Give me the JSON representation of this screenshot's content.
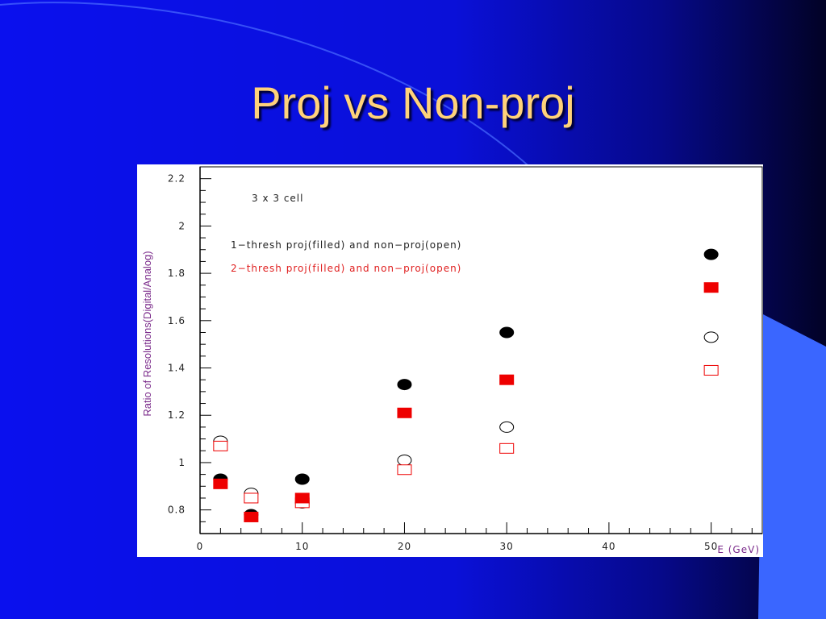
{
  "slide": {
    "title": "Proj vs Non-proj"
  },
  "chart_data": {
    "type": "scatter",
    "xlabel": "E (GeV)",
    "ylabel": "Ratio of Resolutions(Digital/Analog)",
    "xlim": [
      0,
      55
    ],
    "ylim": [
      0.7,
      2.25
    ],
    "x_ticks": [
      "0",
      "10",
      "20",
      "30",
      "40",
      "50"
    ],
    "y_ticks": [
      "0.8",
      "1",
      "1.2",
      "1.4",
      "1.6",
      "1.8",
      "2",
      "2.2"
    ],
    "annotations": [
      "3 x 3 cell",
      "1−thresh proj(filled) and non−proj(open)",
      "2−thresh proj(filled) and non−proj(open)"
    ],
    "series": [
      {
        "marker": "circle",
        "filled": true,
        "color": "#000000",
        "x": [
          2,
          5,
          10,
          20,
          30,
          50
        ],
        "y": [
          0.93,
          0.78,
          0.93,
          1.33,
          1.55,
          1.88
        ]
      },
      {
        "marker": "circle",
        "filled": false,
        "color": "#000000",
        "x": [
          2,
          5,
          10,
          20,
          30,
          50
        ],
        "y": [
          1.09,
          0.87,
          0.83,
          1.01,
          1.15,
          1.53
        ]
      },
      {
        "marker": "square",
        "filled": true,
        "color": "#ee0000",
        "x": [
          2,
          5,
          10,
          20,
          30,
          50
        ],
        "y": [
          0.91,
          0.77,
          0.85,
          1.21,
          1.35,
          1.74
        ]
      },
      {
        "marker": "square",
        "filled": false,
        "color": "#ee0000",
        "x": [
          2,
          5,
          10,
          20,
          30,
          50
        ],
        "y": [
          1.07,
          0.85,
          0.83,
          0.97,
          1.06,
          1.39
        ]
      }
    ]
  }
}
